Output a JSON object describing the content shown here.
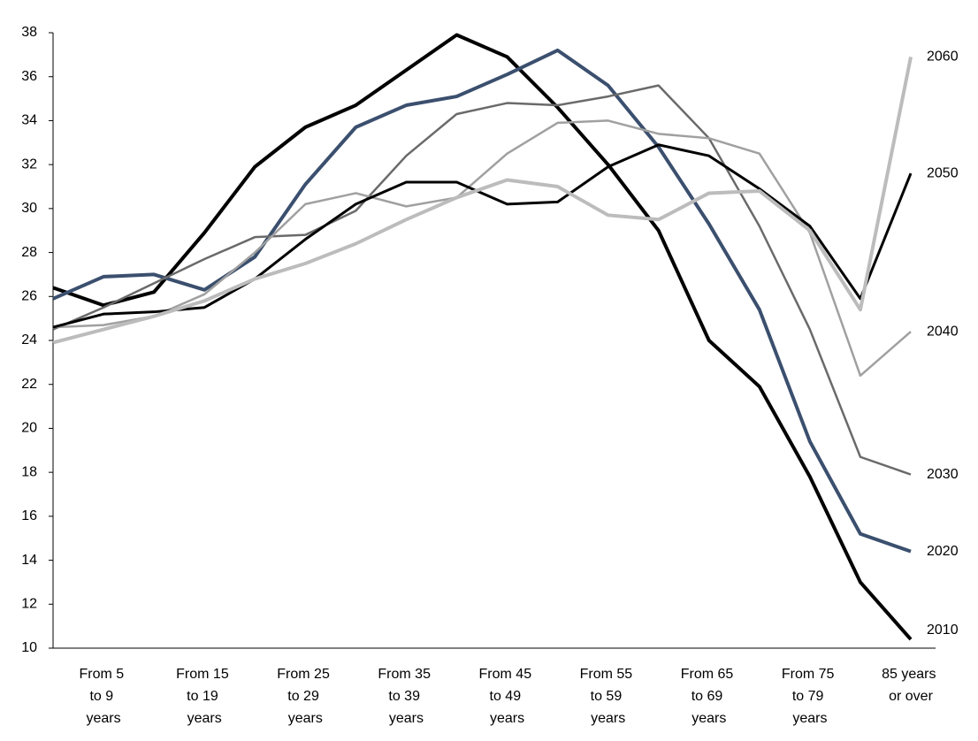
{
  "chart_data": {
    "type": "line",
    "categories": [
      null,
      "From 5 to 9 years",
      null,
      "From 15 to 19 years",
      null,
      "From 25 to 29 years",
      null,
      "From 35 to 39 years",
      null,
      "From 45 to 49 years",
      null,
      "From 55 to 59 years",
      null,
      "From 65 to 69 years",
      null,
      "From 75 to 79 years",
      null,
      "85 years or over"
    ],
    "ylim": [
      10,
      38
    ],
    "yticks": [
      10,
      12,
      14,
      16,
      18,
      20,
      22,
      24,
      26,
      28,
      30,
      32,
      34,
      36,
      38
    ],
    "grid": false,
    "series": [
      {
        "name": "2010",
        "color": "#000000",
        "width": 4,
        "values": [
          26.4,
          25.6,
          26.2,
          28.9,
          31.9,
          33.7,
          34.7,
          36.3,
          37.9,
          36.9,
          34.6,
          32.0,
          29.0,
          24.0,
          21.9,
          17.8,
          13.0,
          10.4
        ]
      },
      {
        "name": "2020",
        "color": "#3b4f6e",
        "width": 4,
        "values": [
          25.9,
          26.9,
          27.0,
          26.3,
          27.8,
          31.1,
          33.7,
          34.7,
          35.1,
          36.1,
          37.2,
          35.6,
          32.8,
          29.3,
          25.4,
          19.4,
          15.2,
          14.4
        ]
      },
      {
        "name": "2030",
        "color": "#6a6a6a",
        "width": 2.5,
        "values": [
          24.5,
          25.5,
          26.6,
          27.7,
          28.7,
          28.8,
          29.9,
          32.4,
          34.3,
          34.8,
          34.7,
          35.1,
          35.6,
          33.2,
          29.2,
          24.5,
          18.7,
          17.9
        ]
      },
      {
        "name": "2040",
        "color": "#a0a0a0",
        "width": 2.5,
        "values": [
          24.6,
          24.7,
          25.1,
          26.1,
          28.0,
          30.2,
          30.7,
          30.1,
          30.5,
          32.5,
          33.9,
          34.0,
          33.4,
          33.2,
          32.5,
          28.9,
          22.4,
          24.4
        ]
      },
      {
        "name": "2050",
        "color": "#000000",
        "width": 3,
        "values": [
          24.6,
          25.2,
          25.3,
          25.5,
          26.8,
          28.6,
          30.2,
          31.2,
          31.2,
          30.2,
          30.3,
          31.9,
          32.9,
          32.4,
          30.9,
          29.2,
          25.9,
          31.6
        ]
      },
      {
        "name": "2060",
        "color": "#bcbcbc",
        "width": 4,
        "values": [
          23.9,
          24.5,
          25.1,
          25.8,
          26.8,
          27.5,
          28.4,
          29.5,
          30.5,
          31.3,
          31.0,
          29.7,
          29.5,
          30.7,
          30.8,
          29.0,
          25.4,
          36.9
        ]
      }
    ]
  }
}
